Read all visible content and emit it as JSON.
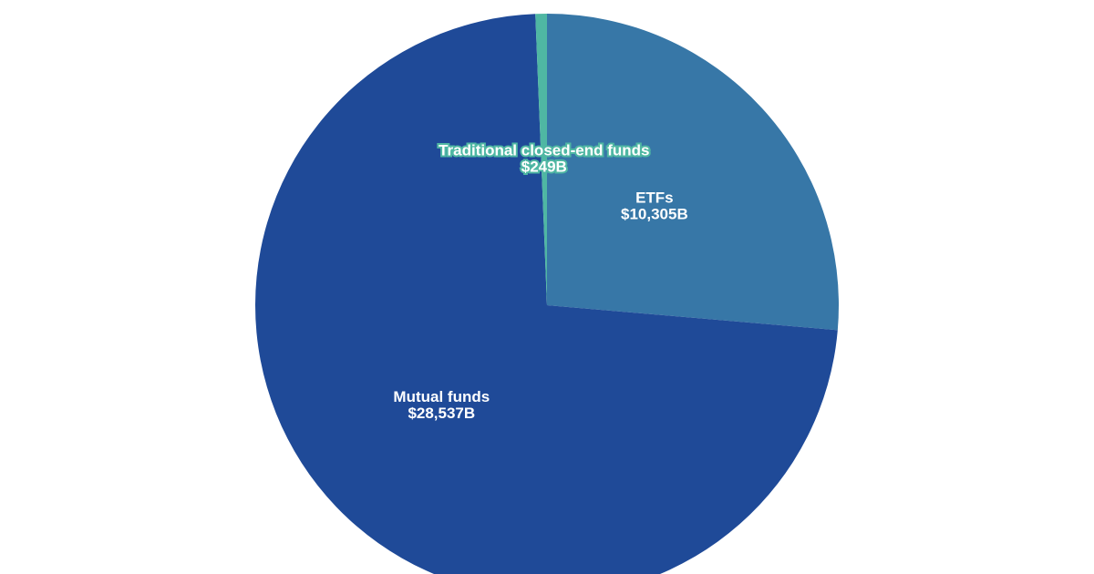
{
  "chart_data": {
    "type": "pie",
    "categories": [
      "ETFs",
      "Mutual funds",
      "Traditional closed-end funds"
    ],
    "values": [
      10305,
      28537,
      249
    ],
    "value_labels": [
      "$10,305B",
      "$28,537B",
      "$249B"
    ],
    "colors": [
      "#3777a7",
      "#1f4a98",
      "#4fb7a3"
    ]
  }
}
